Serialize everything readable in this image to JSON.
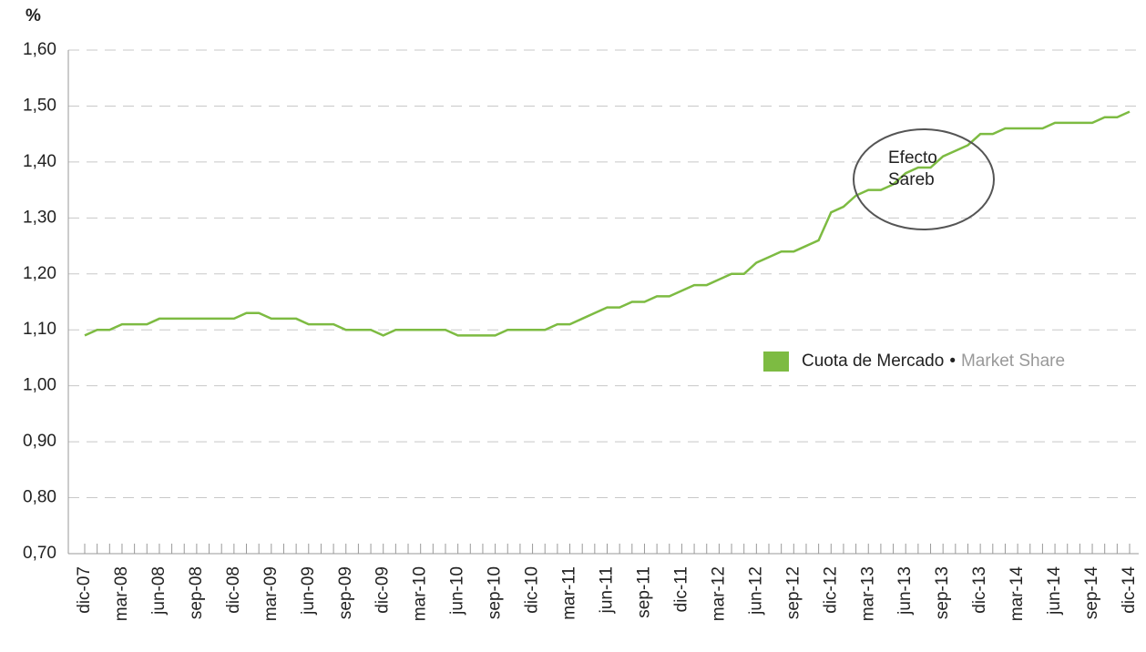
{
  "chart_data": {
    "type": "line",
    "y_axis_label": "%",
    "categories": [
      "dic-07",
      null,
      null,
      "mar-08",
      null,
      null,
      "jun-08",
      null,
      null,
      "sep-08",
      null,
      null,
      "dic-08",
      null,
      null,
      "mar-09",
      null,
      null,
      "jun-09",
      null,
      null,
      "sep-09",
      null,
      null,
      "dic-09",
      null,
      null,
      "mar-10",
      null,
      null,
      "jun-10",
      null,
      null,
      "sep-10",
      null,
      null,
      "dic-10",
      null,
      null,
      "mar-11",
      null,
      null,
      "jun-11",
      null,
      null,
      "sep-11",
      null,
      null,
      "dic-11",
      null,
      null,
      "mar-12",
      null,
      null,
      "jun-12",
      null,
      null,
      "sep-12",
      null,
      null,
      "dic-12",
      null,
      null,
      "mar-13",
      null,
      null,
      "jun-13",
      null,
      null,
      "sep-13",
      null,
      null,
      "dic-13",
      null,
      null,
      "mar-14",
      null,
      null,
      "jun-14",
      null,
      null,
      "sep-14",
      null,
      null,
      "dic-14"
    ],
    "series": [
      {
        "name": "Cuota de Mercado",
        "name_suffix": "Market Share",
        "color": "#7dbb42",
        "values": [
          1.09,
          1.1,
          1.1,
          1.11,
          1.11,
          1.11,
          1.12,
          1.12,
          1.12,
          1.12,
          1.12,
          1.12,
          1.12,
          1.13,
          1.13,
          1.12,
          1.12,
          1.12,
          1.11,
          1.11,
          1.11,
          1.1,
          1.1,
          1.1,
          1.09,
          1.1,
          1.1,
          1.1,
          1.1,
          1.1,
          1.09,
          1.09,
          1.09,
          1.09,
          1.1,
          1.1,
          1.1,
          1.1,
          1.11,
          1.11,
          1.12,
          1.13,
          1.14,
          1.14,
          1.15,
          1.15,
          1.16,
          1.16,
          1.17,
          1.18,
          1.18,
          1.19,
          1.2,
          1.2,
          1.22,
          1.23,
          1.24,
          1.24,
          1.25,
          1.26,
          1.31,
          1.32,
          1.34,
          1.35,
          1.35,
          1.36,
          1.38,
          1.39,
          1.39,
          1.41,
          1.42,
          1.43,
          1.45,
          1.45,
          1.46,
          1.46,
          1.46,
          1.46,
          1.47,
          1.47,
          1.47,
          1.47,
          1.48,
          1.48,
          1.49
        ]
      }
    ],
    "annotation": [
      "Efecto",
      "Sareb"
    ],
    "ylim": [
      0.7,
      1.6
    ],
    "yticks": [
      {
        "value": 0.7,
        "label": "0,70"
      },
      {
        "value": 0.8,
        "label": "0,80"
      },
      {
        "value": 0.9,
        "label": "0,90"
      },
      {
        "value": 1.0,
        "label": "1,00"
      },
      {
        "value": 1.1,
        "label": "1,10"
      },
      {
        "value": 1.2,
        "label": "1,20"
      },
      {
        "value": 1.3,
        "label": "1,30"
      },
      {
        "value": 1.4,
        "label": "1,40"
      },
      {
        "value": 1.5,
        "label": "1,50"
      },
      {
        "value": 1.6,
        "label": "1,60"
      }
    ],
    "grid": true
  }
}
